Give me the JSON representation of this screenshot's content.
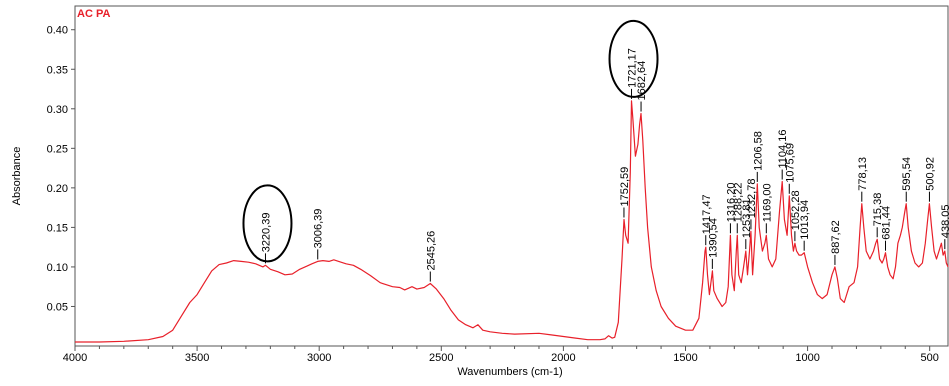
{
  "chart_data": {
    "type": "line",
    "series": [
      {
        "name": "AC PA",
        "color": "#e8202a",
        "points": [
          [
            4000,
            0.005
          ],
          [
            3900,
            0.005
          ],
          [
            3800,
            0.006
          ],
          [
            3700,
            0.008
          ],
          [
            3640,
            0.012
          ],
          [
            3600,
            0.02
          ],
          [
            3560,
            0.04
          ],
          [
            3530,
            0.055
          ],
          [
            3500,
            0.065
          ],
          [
            3470,
            0.08
          ],
          [
            3440,
            0.095
          ],
          [
            3410,
            0.103
          ],
          [
            3380,
            0.105
          ],
          [
            3350,
            0.108
          ],
          [
            3320,
            0.107
          ],
          [
            3290,
            0.106
          ],
          [
            3260,
            0.104
          ],
          [
            3230,
            0.1
          ],
          [
            3220,
            0.102
          ],
          [
            3200,
            0.097
          ],
          [
            3170,
            0.094
          ],
          [
            3140,
            0.09
          ],
          [
            3110,
            0.091
          ],
          [
            3080,
            0.097
          ],
          [
            3050,
            0.101
          ],
          [
            3030,
            0.104
          ],
          [
            3006,
            0.107
          ],
          [
            2985,
            0.108
          ],
          [
            2960,
            0.107
          ],
          [
            2940,
            0.109
          ],
          [
            2920,
            0.107
          ],
          [
            2890,
            0.104
          ],
          [
            2860,
            0.102
          ],
          [
            2830,
            0.097
          ],
          [
            2790,
            0.089
          ],
          [
            2750,
            0.08
          ],
          [
            2700,
            0.075
          ],
          [
            2670,
            0.074
          ],
          [
            2650,
            0.071
          ],
          [
            2620,
            0.075
          ],
          [
            2600,
            0.072
          ],
          [
            2570,
            0.074
          ],
          [
            2545,
            0.079
          ],
          [
            2520,
            0.072
          ],
          [
            2490,
            0.06
          ],
          [
            2460,
            0.045
          ],
          [
            2430,
            0.033
          ],
          [
            2400,
            0.027
          ],
          [
            2370,
            0.023
          ],
          [
            2350,
            0.027
          ],
          [
            2330,
            0.02
          ],
          [
            2300,
            0.018
          ],
          [
            2250,
            0.016
          ],
          [
            2200,
            0.015
          ],
          [
            2100,
            0.016
          ],
          [
            2050,
            0.014
          ],
          [
            2000,
            0.012
          ],
          [
            1950,
            0.01
          ],
          [
            1900,
            0.008
          ],
          [
            1850,
            0.008
          ],
          [
            1830,
            0.009
          ],
          [
            1815,
            0.013
          ],
          [
            1800,
            0.01
          ],
          [
            1790,
            0.011
          ],
          [
            1775,
            0.03
          ],
          [
            1760,
            0.11
          ],
          [
            1752,
            0.16
          ],
          [
            1745,
            0.14
          ],
          [
            1735,
            0.13
          ],
          [
            1726,
            0.22
          ],
          [
            1721,
            0.31
          ],
          [
            1715,
            0.285
          ],
          [
            1705,
            0.24
          ],
          [
            1695,
            0.255
          ],
          [
            1688,
            0.28
          ],
          [
            1682,
            0.294
          ],
          [
            1675,
            0.26
          ],
          [
            1665,
            0.2
          ],
          [
            1655,
            0.15
          ],
          [
            1640,
            0.1
          ],
          [
            1620,
            0.07
          ],
          [
            1600,
            0.05
          ],
          [
            1570,
            0.035
          ],
          [
            1540,
            0.025
          ],
          [
            1500,
            0.02
          ],
          [
            1470,
            0.02
          ],
          [
            1445,
            0.035
          ],
          [
            1430,
            0.08
          ],
          [
            1420,
            0.12
          ],
          [
            1417,
            0.125
          ],
          [
            1410,
            0.09
          ],
          [
            1402,
            0.065
          ],
          [
            1394,
            0.085
          ],
          [
            1390,
            0.095
          ],
          [
            1384,
            0.07
          ],
          [
            1370,
            0.06
          ],
          [
            1350,
            0.05
          ],
          [
            1335,
            0.055
          ],
          [
            1325,
            0.075
          ],
          [
            1316,
            0.14
          ],
          [
            1310,
            0.09
          ],
          [
            1300,
            0.07
          ],
          [
            1292,
            0.12
          ],
          [
            1288,
            0.14
          ],
          [
            1282,
            0.09
          ],
          [
            1272,
            0.08
          ],
          [
            1262,
            0.1
          ],
          [
            1253,
            0.12
          ],
          [
            1246,
            0.09
          ],
          [
            1238,
            0.12
          ],
          [
            1232,
            0.145
          ],
          [
            1225,
            0.09
          ],
          [
            1215,
            0.14
          ],
          [
            1206,
            0.205
          ],
          [
            1198,
            0.15
          ],
          [
            1185,
            0.12
          ],
          [
            1175,
            0.13
          ],
          [
            1169,
            0.14
          ],
          [
            1160,
            0.11
          ],
          [
            1145,
            0.1
          ],
          [
            1130,
            0.11
          ],
          [
            1115,
            0.17
          ],
          [
            1104,
            0.208
          ],
          [
            1095,
            0.16
          ],
          [
            1084,
            0.14
          ],
          [
            1075,
            0.19
          ],
          [
            1066,
            0.14
          ],
          [
            1058,
            0.12
          ],
          [
            1052,
            0.13
          ],
          [
            1045,
            0.12
          ],
          [
            1035,
            0.115
          ],
          [
            1025,
            0.115
          ],
          [
            1014,
            0.118
          ],
          [
            1000,
            0.1
          ],
          [
            980,
            0.08
          ],
          [
            960,
            0.065
          ],
          [
            940,
            0.06
          ],
          [
            920,
            0.065
          ],
          [
            900,
            0.09
          ],
          [
            888,
            0.1
          ],
          [
            878,
            0.085
          ],
          [
            866,
            0.06
          ],
          [
            850,
            0.055
          ],
          [
            830,
            0.075
          ],
          [
            810,
            0.08
          ],
          [
            795,
            0.1
          ],
          [
            785,
            0.15
          ],
          [
            778,
            0.18
          ],
          [
            770,
            0.15
          ],
          [
            760,
            0.12
          ],
          [
            745,
            0.11
          ],
          [
            730,
            0.12
          ],
          [
            721,
            0.13
          ],
          [
            715,
            0.135
          ],
          [
            705,
            0.11
          ],
          [
            695,
            0.105
          ],
          [
            688,
            0.11
          ],
          [
            681,
            0.118
          ],
          [
            672,
            0.1
          ],
          [
            662,
            0.09
          ],
          [
            650,
            0.085
          ],
          [
            640,
            0.1
          ],
          [
            630,
            0.13
          ],
          [
            620,
            0.14
          ],
          [
            612,
            0.15
          ],
          [
            602,
            0.17
          ],
          [
            596,
            0.18
          ],
          [
            588,
            0.15
          ],
          [
            575,
            0.12
          ],
          [
            560,
            0.105
          ],
          [
            545,
            0.1
          ],
          [
            530,
            0.105
          ],
          [
            518,
            0.13
          ],
          [
            508,
            0.16
          ],
          [
            501,
            0.18
          ],
          [
            492,
            0.15
          ],
          [
            482,
            0.12
          ],
          [
            472,
            0.11
          ],
          [
            462,
            0.12
          ],
          [
            452,
            0.13
          ],
          [
            445,
            0.115
          ],
          [
            438,
            0.12
          ],
          [
            432,
            0.105
          ],
          [
            425,
            0.1
          ]
        ]
      }
    ],
    "xlabel": "Wavenumbers (cm-1)",
    "ylabel": "Absorbance",
    "xlim": [
      4000,
      425
    ],
    "ylim": [
      0,
      0.43
    ],
    "xticks": [
      "4000",
      "3500",
      "3000",
      "2500",
      "2000",
      "1500",
      "1000",
      "500"
    ],
    "yticks": [
      "0.05",
      "0.10",
      "0.15",
      "0.20",
      "0.25",
      "0.30",
      "0.35",
      "0.40"
    ],
    "x_axis_reversed": true,
    "grid": false,
    "legend": "top-left",
    "peak_labels": [
      {
        "label": "3220,39",
        "x": 3220,
        "y": 0.102,
        "circled": true
      },
      {
        "label": "3006,39",
        "x": 3006,
        "y": 0.107,
        "circled": false
      },
      {
        "label": "2545,26",
        "x": 2545,
        "y": 0.079,
        "circled": false
      },
      {
        "label": "1752,59",
        "x": 1752,
        "y": 0.16,
        "circled": false
      },
      {
        "label": "1721,17",
        "x": 1721,
        "y": 0.31,
        "circled": true
      },
      {
        "label": "1682,64",
        "x": 1682,
        "y": 0.294,
        "circled": false
      },
      {
        "label": "1417,47",
        "x": 1417,
        "y": 0.125,
        "circled": false
      },
      {
        "label": "1390,54",
        "x": 1390,
        "y": 0.095,
        "circled": false
      },
      {
        "label": "1316,20",
        "x": 1316,
        "y": 0.14,
        "circled": false
      },
      {
        "label": "1288,22",
        "x": 1288,
        "y": 0.14,
        "circled": false
      },
      {
        "label": "1253,81",
        "x": 1253,
        "y": 0.12,
        "circled": false
      },
      {
        "label": "1232,78",
        "x": 1232,
        "y": 0.145,
        "circled": false
      },
      {
        "label": "1206,58",
        "x": 1206,
        "y": 0.205,
        "circled": false
      },
      {
        "label": "1169,00",
        "x": 1169,
        "y": 0.14,
        "circled": false
      },
      {
        "label": "1104,16",
        "x": 1104,
        "y": 0.208,
        "circled": false
      },
      {
        "label": "1075,69",
        "x": 1075,
        "y": 0.19,
        "circled": false
      },
      {
        "label": "1052,28",
        "x": 1052,
        "y": 0.13,
        "circled": false
      },
      {
        "label": "1013,94",
        "x": 1014,
        "y": 0.118,
        "circled": false
      },
      {
        "label": "887,62",
        "x": 888,
        "y": 0.1,
        "circled": false
      },
      {
        "label": "778,13",
        "x": 778,
        "y": 0.18,
        "circled": false
      },
      {
        "label": "715,38",
        "x": 715,
        "y": 0.135,
        "circled": false
      },
      {
        "label": "681,44",
        "x": 681,
        "y": 0.118,
        "circled": false
      },
      {
        "label": "595,54",
        "x": 596,
        "y": 0.18,
        "circled": false
      },
      {
        "label": "500,92",
        "x": 501,
        "y": 0.18,
        "circled": false
      },
      {
        "label": "438,05",
        "x": 438,
        "y": 0.12,
        "circled": false
      }
    ]
  }
}
